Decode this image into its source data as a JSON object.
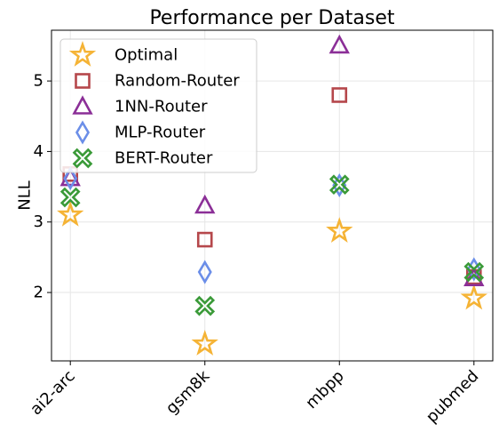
{
  "chart_data": {
    "type": "scatter",
    "title": "Performance per Dataset",
    "xlabel": "",
    "ylabel": "NLL",
    "categories": [
      "ai2-arc",
      "gsm8k",
      "mbpp",
      "pubmed"
    ],
    "ylim": [
      1.03,
      5.72
    ],
    "yticks": [
      2,
      3,
      4,
      5
    ],
    "grid": true,
    "legend": "top-left",
    "series": [
      {
        "name": "Optimal",
        "marker": "star",
        "color": "#f5b335",
        "values": [
          3.1,
          1.27,
          2.87,
          1.92
        ]
      },
      {
        "name": "Random-Router",
        "marker": "square",
        "color": "#b5474b",
        "values": [
          3.68,
          2.75,
          4.8,
          2.22
        ]
      },
      {
        "name": "1NN-Router",
        "marker": "triangle",
        "color": "#8b2f97",
        "values": [
          3.62,
          3.23,
          5.5,
          2.2
        ]
      },
      {
        "name": "MLP-Router",
        "marker": "diamond",
        "color": "#6b8ee8",
        "values": [
          3.62,
          2.29,
          3.52,
          2.33
        ]
      },
      {
        "name": "BERT-Router",
        "marker": "x",
        "color": "#3a9a38",
        "values": [
          3.35,
          1.81,
          3.53,
          2.29
        ]
      }
    ]
  }
}
